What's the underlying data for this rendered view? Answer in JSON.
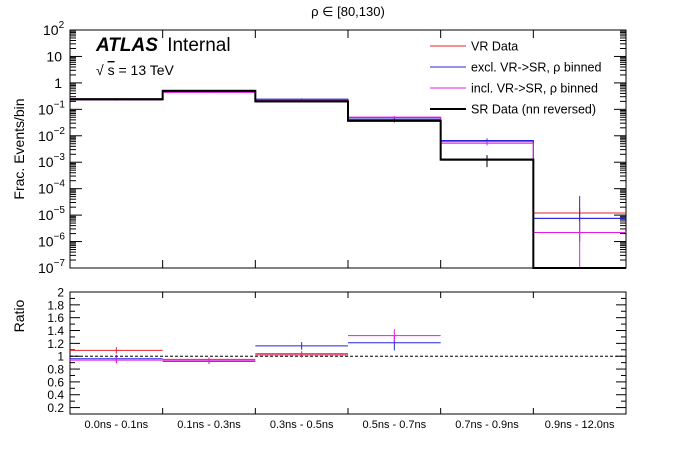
{
  "chart_data": [
    {
      "type": "line",
      "title": "ρ ∈ [80,130)",
      "xlabel": "",
      "ylabel": "Frac. Events/bin",
      "yscale": "log",
      "ylim": [
        1e-07,
        100
      ],
      "categories": [
        "0.0ns - 0.1ns",
        "0.1ns - 0.3ns",
        "0.3ns - 0.5ns",
        "0.5ns - 0.7ns",
        "0.7ns - 0.9ns",
        "0.9ns - 12.0ns"
      ],
      "y_tick_labels": [
        {
          "label": "10",
          "exp": "2"
        },
        {
          "label": "10",
          "exp": ""
        },
        {
          "label": "1",
          "exp": ""
        },
        {
          "label": "10",
          "exp": "−1"
        },
        {
          "label": "10",
          "exp": "−2"
        },
        {
          "label": "10",
          "exp": "−3"
        },
        {
          "label": "10",
          "exp": "−4"
        },
        {
          "label": "10",
          "exp": "−5"
        },
        {
          "label": "10",
          "exp": "−6"
        },
        {
          "label": "10",
          "exp": "−7"
        }
      ],
      "atlas_label": {
        "bold": "ATLAS",
        "normal": "Internal",
        "energy_sqrt": "s",
        "energy_rest": " = 13 TeV"
      },
      "legend_position": "top-right",
      "series": [
        {
          "name": "VR Data",
          "color": "#e8232b",
          "values": [
            0.245,
            0.48,
            0.205,
            0.041,
            0.0062,
            1.2e-05
          ],
          "errors": [
            [
              0.01,
              0.01
            ],
            [
              0.02,
              0.02
            ],
            [
              0.01,
              0.01
            ],
            [
              0.004,
              0.004
            ],
            [
              0.0012,
              0.0012
            ],
            [
              6e-06,
              6e-06
            ]
          ]
        },
        {
          "name": "excl. VR->SR, ρ binned",
          "color": "#2525e0",
          "values": [
            0.23,
            0.46,
            0.24,
            0.047,
            0.0066,
            7.5e-06
          ],
          "errors": [
            [
              0.015,
              0.015
            ],
            [
              0.02,
              0.02
            ],
            [
              0.02,
              0.02
            ],
            [
              0.005,
              0.005
            ],
            [
              0.0013,
              0.0013
            ],
            [
              6.5e-06,
              4.5e-05
            ]
          ]
        },
        {
          "name": "incl. VR->SR, ρ binned",
          "color": "#e619e6",
          "values": [
            0.225,
            0.445,
            0.215,
            0.05,
            0.0053,
            2.2e-06
          ],
          "errors": [
            [
              0.012,
              0.012
            ],
            [
              0.02,
              0.02
            ],
            [
              0.015,
              0.015
            ],
            [
              0.006,
              0.006
            ],
            [
              0.001,
              0.001
            ],
            [
              2.1e-06,
              3.5e-06
            ]
          ]
        },
        {
          "name": "SR Data (nn reversed)",
          "color": "#000000",
          "values": [
            0.24,
            0.5,
            0.2,
            0.037,
            0.00125,
            0
          ],
          "errors": [
            [
              0.01,
              0.01
            ],
            [
              0.02,
              0.02
            ],
            [
              0.01,
              0.01
            ],
            [
              0.005,
              0.005
            ],
            [
              0.0006,
              0.0006
            ],
            [
              0,
              0
            ]
          ]
        }
      ]
    },
    {
      "type": "line",
      "title": "",
      "xlabel": "",
      "ylabel": "Ratio",
      "ylim": [
        0.1,
        2
      ],
      "reference_line": 1,
      "categories": [
        "0.0ns - 0.1ns",
        "0.1ns - 0.3ns",
        "0.3ns - 0.5ns",
        "0.5ns - 0.7ns",
        "0.7ns - 0.9ns",
        "0.9ns - 12.0ns"
      ],
      "y_tick_labels": [
        "2",
        "1.8",
        "1.6",
        "1.4",
        "1.2",
        "1",
        "0.8",
        "0.6",
        "0.4",
        "0.2"
      ],
      "series": [
        {
          "name": "VR Data",
          "color": "#e8232b",
          "values": [
            1.09,
            0.95,
            1.02,
            null,
            null,
            null
          ],
          "errors": [
            0.05,
            0.03,
            0.04,
            0,
            0,
            0
          ]
        },
        {
          "name": "excl. VR->SR, ρ binned",
          "color": "#2525e0",
          "values": [
            0.96,
            0.92,
            1.16,
            1.21,
            null,
            null
          ],
          "errors": [
            0.06,
            0.04,
            0.06,
            0.12,
            0,
            0
          ]
        },
        {
          "name": "incl. VR->SR, ρ binned",
          "color": "#e619e6",
          "values": [
            0.94,
            0.93,
            1.04,
            1.32,
            null,
            null
          ],
          "errors": [
            0.05,
            0.03,
            0.04,
            0.1,
            0,
            0
          ]
        }
      ]
    }
  ]
}
